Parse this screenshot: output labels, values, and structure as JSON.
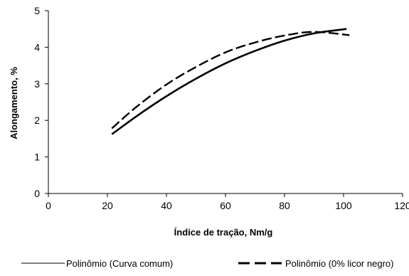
{
  "chart_data": {
    "type": "line",
    "title": "",
    "xlabel": "Índice de tração, Nm/g",
    "ylabel": "Alongamento, %",
    "xlim": [
      0,
      120
    ],
    "ylim": [
      0,
      5
    ],
    "x_ticks": [
      0,
      20,
      40,
      60,
      80,
      100,
      120
    ],
    "y_ticks": [
      0,
      1,
      2,
      3,
      4,
      5
    ],
    "grid": false,
    "legend_position": "bottom",
    "series": [
      {
        "name": "Polinômio (Curva comum)",
        "style": "solid",
        "color": "#000000",
        "x": [
          21.5,
          30,
          40,
          50,
          60,
          70,
          80,
          90,
          101
        ],
        "y": [
          1.62,
          2.12,
          2.66,
          3.14,
          3.56,
          3.9,
          4.18,
          4.38,
          4.5
        ]
      },
      {
        "name": "Polinômio (0% licor negro)",
        "style": "dashed",
        "color": "#000000",
        "x": [
          21.5,
          30,
          40,
          50,
          60,
          70,
          80,
          90,
          102
        ],
        "y": [
          1.78,
          2.38,
          2.98,
          3.46,
          3.86,
          4.13,
          4.32,
          4.42,
          4.33
        ]
      }
    ]
  }
}
